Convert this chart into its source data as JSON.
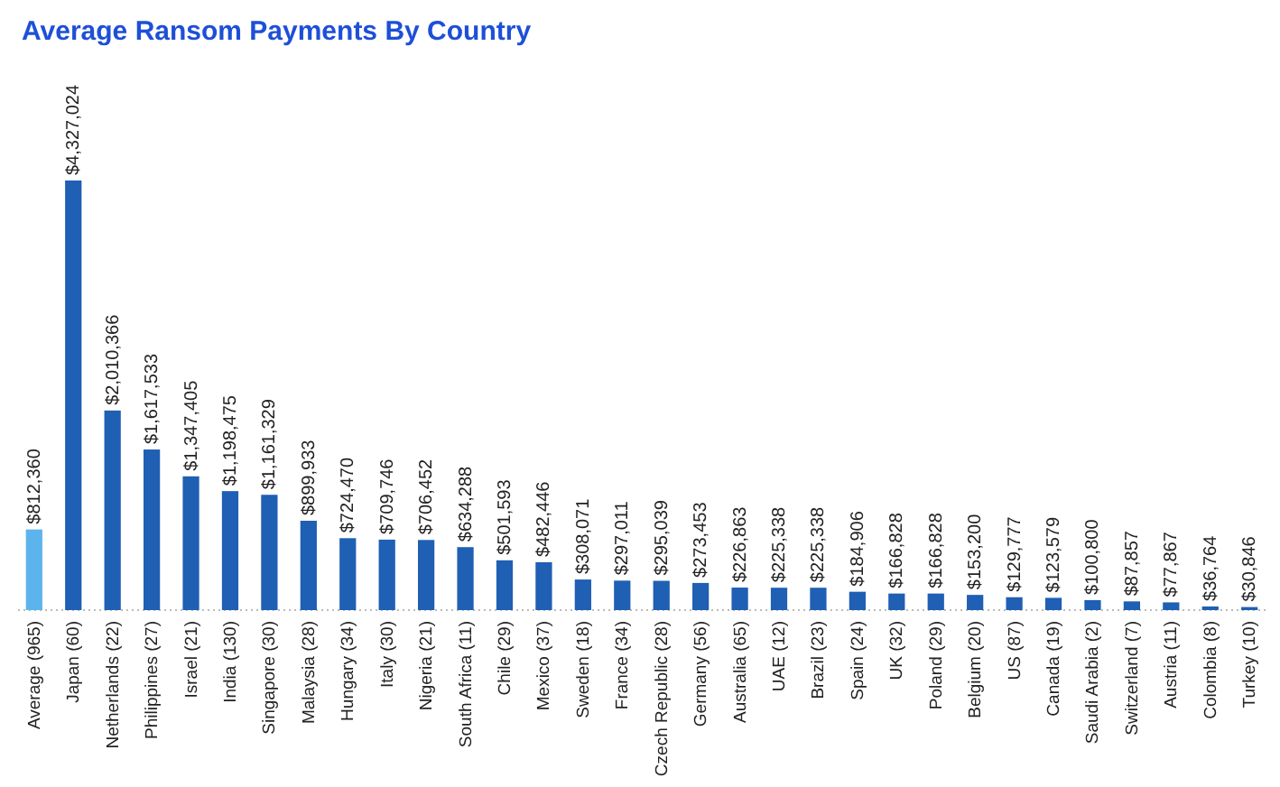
{
  "chart_data": {
    "type": "bar",
    "title": "Average Ransom Payments By Country",
    "categories": [
      "Average (965)",
      "Japan (60)",
      "Netherlands (22)",
      "Philippines (27)",
      "Israel (21)",
      "India (130)",
      "Singapore (30)",
      "Malaysia (28)",
      "Hungary (34)",
      "Italy (30)",
      "Nigeria (21)",
      "South Africa (11)",
      "Chile (29)",
      "Mexico (37)",
      "Sweden (18)",
      "France (34)",
      "Czech Republic (28)",
      "Germany (56)",
      "Australia (65)",
      "UAE (12)",
      "Brazil (23)",
      "Spain (24)",
      "UK (32)",
      "Poland (29)",
      "Belgium (20)",
      "US (87)",
      "Canada (19)",
      "Saudi Arabia (2)",
      "Switzerland (7)",
      "Austria (11)",
      "Colombia (8)",
      "Turkey (10)"
    ],
    "values": [
      812360,
      4327024,
      2010366,
      1617533,
      1347405,
      1198475,
      1161329,
      899933,
      724470,
      709746,
      706452,
      634288,
      501593,
      482446,
      308071,
      297011,
      295039,
      273453,
      226863,
      225338,
      225338,
      184906,
      166828,
      166828,
      153200,
      129777,
      123579,
      100800,
      87857,
      77867,
      36764,
      30846
    ],
    "value_labels": [
      "$812,360",
      "$4,327,024",
      "$2,010,366",
      "$1,617,533",
      "$1,347,405",
      "$1,198,475",
      "$1,161,329",
      "$899,933",
      "$724,470",
      "$709,746",
      "$706,452",
      "$634,288",
      "$501,593",
      "$482,446",
      "$308,071",
      "$297,011",
      "$295,039",
      "$273,453",
      "$226,863",
      "$225,338",
      "$225,338",
      "$184,906",
      "$166,828",
      "$166,828",
      "$153,200",
      "$129,777",
      "$123,579",
      "$100,800",
      "$87,857",
      "$77,867",
      "$36,764",
      "$30,846"
    ],
    "colors": [
      "#5cb4ec",
      "#1f5fb4",
      "#1f5fb4",
      "#1f5fb4",
      "#1f5fb4",
      "#1f5fb4",
      "#1f5fb4",
      "#1f5fb4",
      "#1f5fb4",
      "#1f5fb4",
      "#1f5fb4",
      "#1f5fb4",
      "#1f5fb4",
      "#1f5fb4",
      "#1f5fb4",
      "#1f5fb4",
      "#1f5fb4",
      "#1f5fb4",
      "#1f5fb4",
      "#1f5fb4",
      "#1f5fb4",
      "#1f5fb4",
      "#1f5fb4",
      "#1f5fb4",
      "#1f5fb4",
      "#1f5fb4",
      "#1f5fb4",
      "#1f5fb4",
      "#1f5fb4",
      "#1f5fb4",
      "#1f5fb4",
      "#1f5fb4"
    ]
  }
}
